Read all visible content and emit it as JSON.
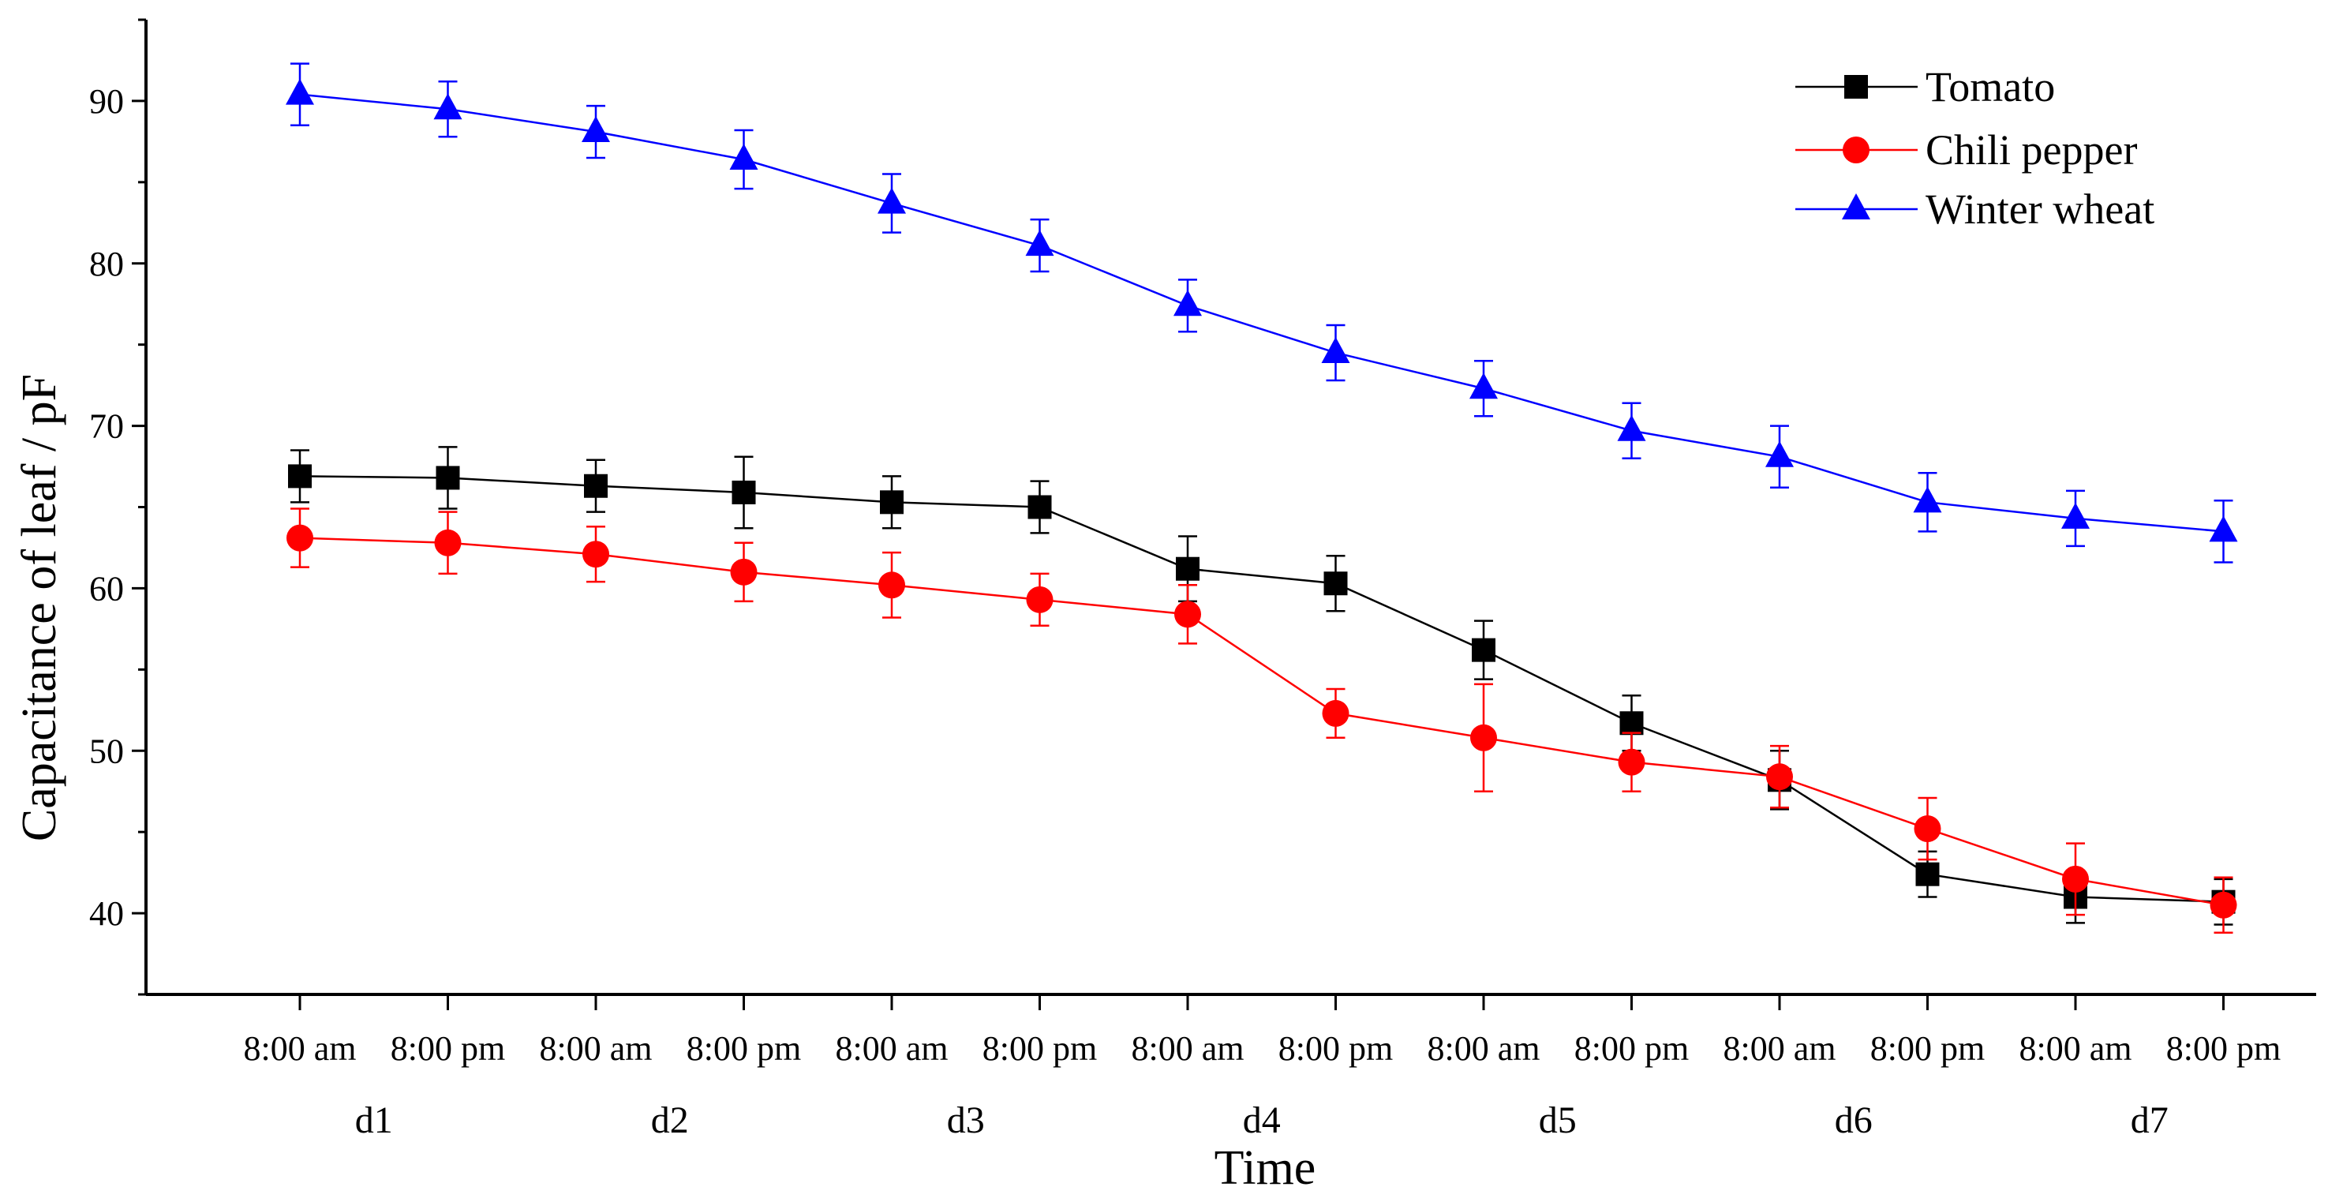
{
  "chart_data": {
    "type": "line",
    "xlabel": "Time",
    "ylabel": "Capacitance of leaf / pF",
    "ylim": [
      35,
      95
    ],
    "yticks": [
      40,
      50,
      60,
      70,
      80,
      90
    ],
    "x_tick_labels": [
      "8:00 am",
      "8:00 pm",
      "8:00 am",
      "8:00 pm",
      "8:00 am",
      "8:00 pm",
      "8:00 am",
      "8:00 pm",
      "8:00 am",
      "8:00 pm",
      "8:00 am",
      "8:00 pm",
      "8:00 am",
      "8:00 pm"
    ],
    "day_labels": [
      "d1",
      "d2",
      "d3",
      "d4",
      "d5",
      "d6",
      "d7"
    ],
    "grid": false,
    "legend_position": "top-right",
    "series": [
      {
        "name": "Tomato",
        "color": "#000000",
        "marker": "square",
        "values": [
          66.9,
          66.8,
          66.3,
          65.9,
          65.3,
          65.0,
          61.2,
          60.3,
          56.2,
          51.7,
          48.2,
          42.4,
          41.0,
          40.7
        ],
        "errors": [
          1.6,
          1.9,
          1.6,
          2.2,
          1.6,
          1.6,
          2.0,
          1.7,
          1.8,
          1.7,
          1.8,
          1.4,
          1.6,
          1.4
        ]
      },
      {
        "name": "Chili pepper",
        "color": "#ff0000",
        "marker": "circle",
        "values": [
          63.1,
          62.8,
          62.1,
          61.0,
          60.2,
          59.3,
          58.4,
          52.3,
          50.8,
          49.3,
          48.4,
          45.2,
          42.1,
          40.5
        ],
        "errors": [
          1.8,
          1.9,
          1.7,
          1.8,
          2.0,
          1.6,
          1.8,
          1.5,
          3.3,
          1.8,
          1.9,
          1.9,
          2.2,
          1.7
        ]
      },
      {
        "name": "Winter wheat",
        "color": "#0000ff",
        "marker": "triangle",
        "values": [
          90.4,
          89.5,
          88.1,
          86.4,
          83.7,
          81.1,
          77.4,
          74.5,
          72.3,
          69.7,
          68.1,
          65.3,
          64.3,
          63.5
        ],
        "errors": [
          1.9,
          1.7,
          1.6,
          1.8,
          1.8,
          1.6,
          1.6,
          1.7,
          1.7,
          1.7,
          1.9,
          1.8,
          1.7,
          1.9
        ]
      }
    ]
  }
}
